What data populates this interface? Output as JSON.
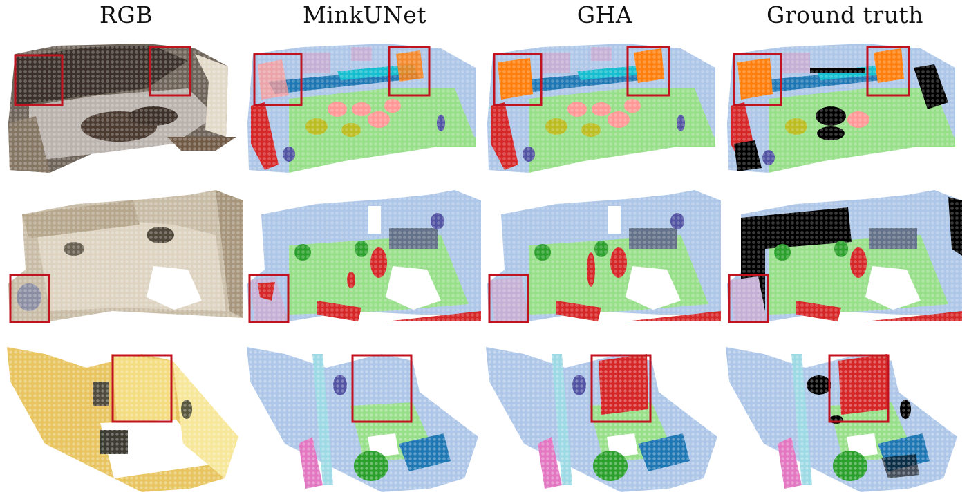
{
  "columns": [
    "RGB",
    "MinkUNet",
    "GHA",
    "Ground truth"
  ],
  "colors": {
    "highlight_box": "#c1121f",
    "wall": "#aec7e8",
    "floor": "#98df8a",
    "chair": "#bcbd22",
    "table": "#ff9896",
    "cabinet": "#1f77b4",
    "door": "#d62728",
    "window": "#c5b0d5",
    "picture": "#ff7f0e",
    "counter": "#17becf",
    "sofa": "#2ca02c",
    "other": "#5254a3",
    "misc": "#637189",
    "sink": "#e377c2",
    "unlabeled": "#000000"
  },
  "rows": [
    {
      "scene": "room-1",
      "highlight_boxes": 2
    },
    {
      "scene": "room-2",
      "highlight_boxes": 1
    },
    {
      "scene": "room-3",
      "highlight_boxes": 1
    }
  ]
}
